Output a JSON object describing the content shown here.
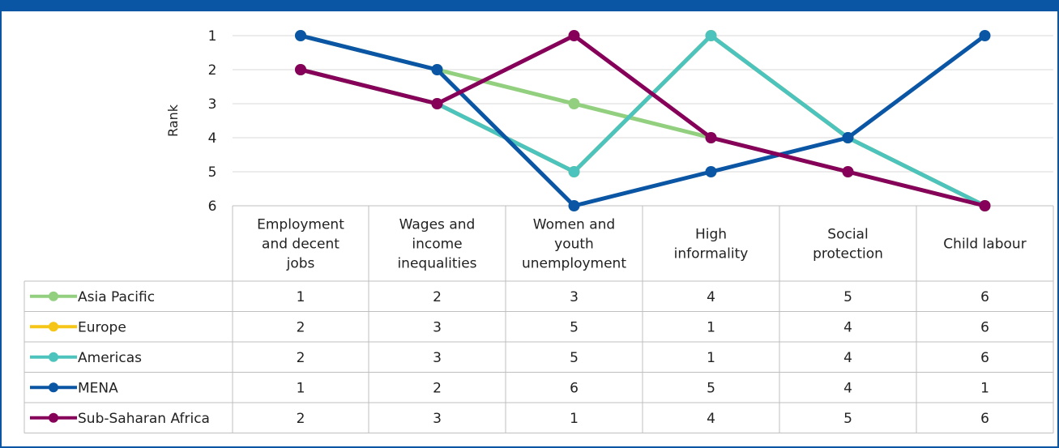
{
  "chart_data": {
    "type": "line",
    "ylabel": "Rank",
    "y_ticks": [
      "1",
      "2",
      "3",
      "4",
      "5",
      "6"
    ],
    "ylim": [
      1,
      6
    ],
    "y_inverted": true,
    "grid": true,
    "legend_placement": "data-table-left",
    "categories": [
      [
        "Employment",
        "and decent",
        "jobs"
      ],
      [
        "Wages and",
        "income",
        "inequalities"
      ],
      [
        "Women and",
        "youth",
        "unemployment"
      ],
      [
        "High",
        "informality"
      ],
      [
        "Social",
        "protection"
      ],
      [
        "Child labour"
      ]
    ],
    "series": [
      {
        "name": "Asia Pacific",
        "color": "#92d07f",
        "values": [
          1,
          2,
          3,
          4,
          5,
          6
        ]
      },
      {
        "name": "Europe",
        "color": "#f5c518",
        "values": [
          2,
          3,
          5,
          1,
          4,
          6
        ]
      },
      {
        "name": "Americas",
        "color": "#4dc3bd",
        "values": [
          2,
          3,
          5,
          1,
          4,
          6
        ]
      },
      {
        "name": "MENA",
        "color": "#0b56a4",
        "values": [
          1,
          2,
          6,
          5,
          4,
          1
        ]
      },
      {
        "name": "Sub-Saharan Africa",
        "color": "#86005a",
        "values": [
          2,
          3,
          1,
          4,
          5,
          6
        ]
      }
    ]
  },
  "theme": {
    "header_color": "#0b56a4",
    "grid_color": "#d9d9d9",
    "table_border_color": "#bfbfbf"
  }
}
